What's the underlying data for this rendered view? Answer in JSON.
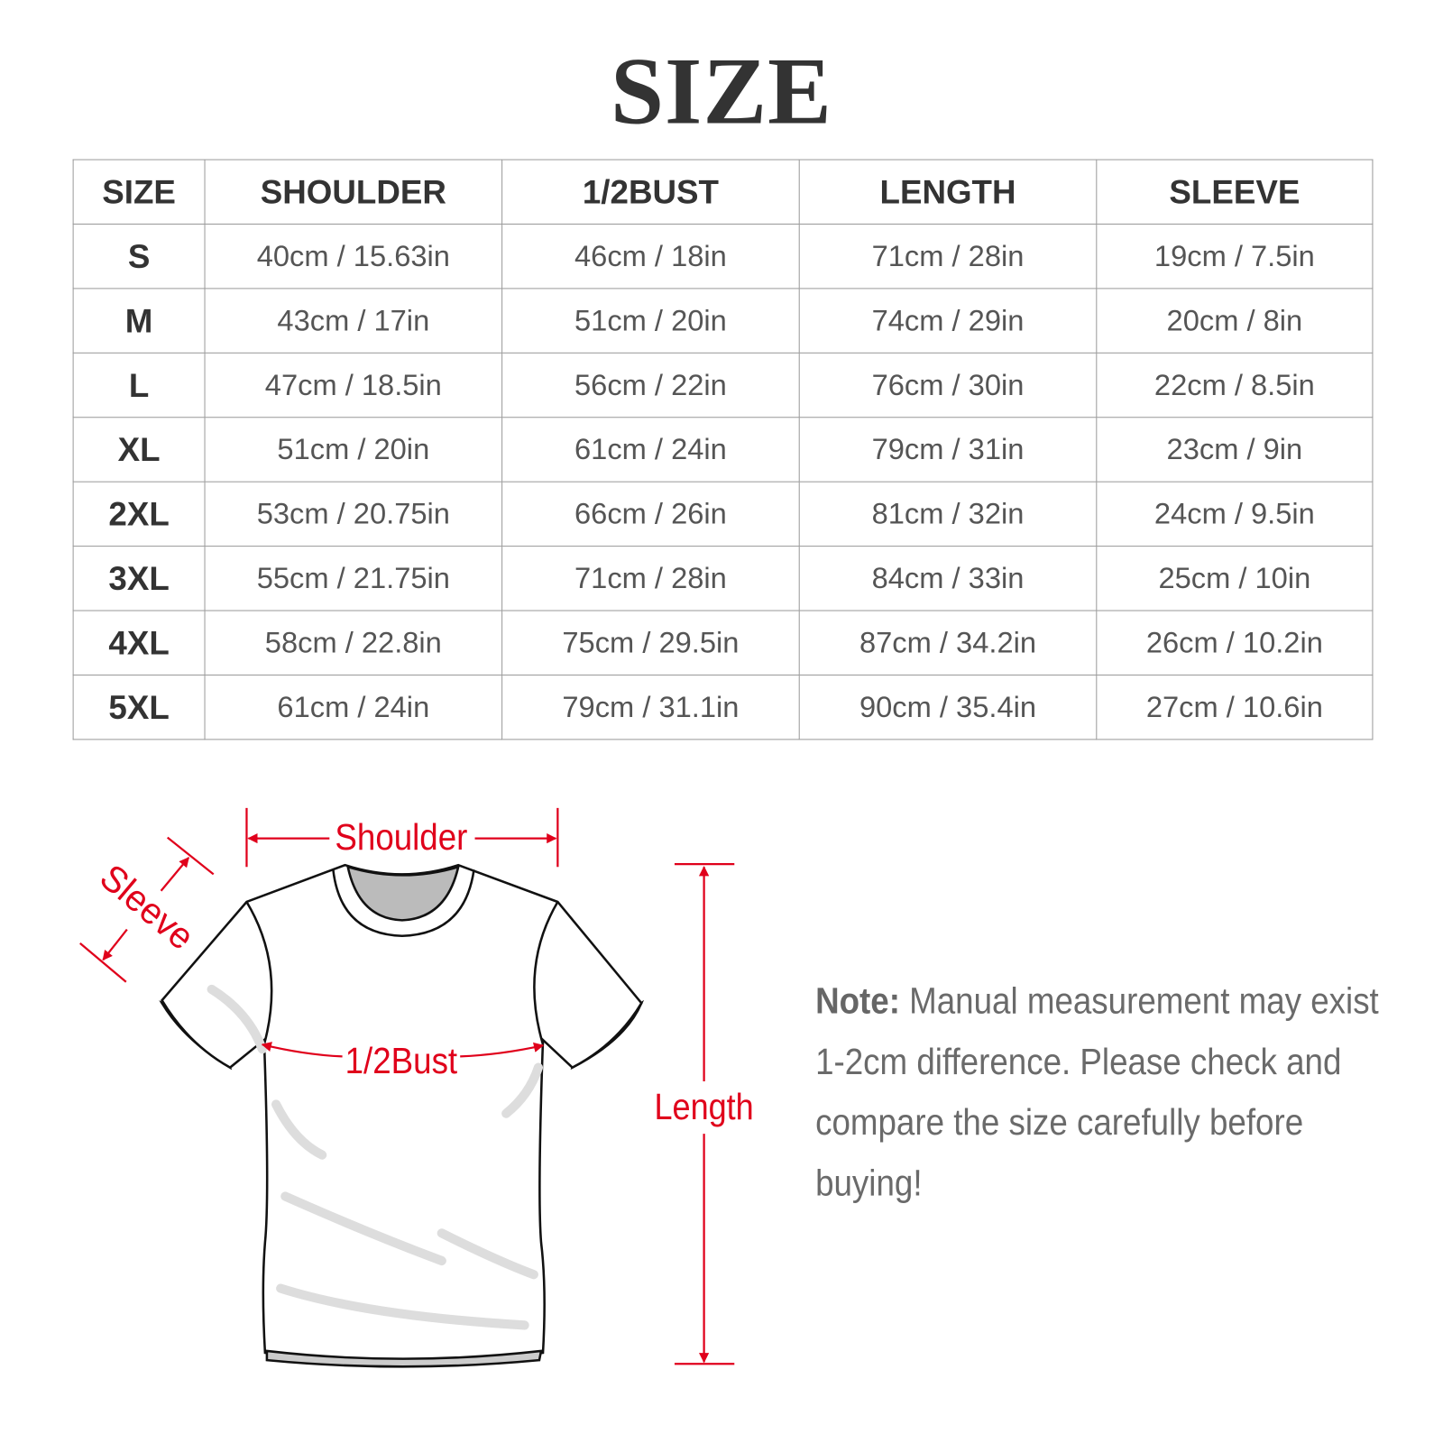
{
  "title": "SIZE",
  "table": {
    "headers": [
      "SIZE",
      "SHOULDER",
      "1/2BUST",
      "LENGTH",
      "SLEEVE"
    ],
    "rows": [
      [
        "S",
        "40cm / 15.63in",
        "46cm / 18in",
        "71cm / 28in",
        "19cm / 7.5in"
      ],
      [
        "M",
        "43cm / 17in",
        "51cm / 20in",
        "74cm / 29in",
        "20cm / 8in"
      ],
      [
        "L",
        "47cm / 18.5in",
        "56cm / 22in",
        "76cm / 30in",
        "22cm / 8.5in"
      ],
      [
        "XL",
        "51cm / 20in",
        "61cm / 24in",
        "79cm / 31in",
        "23cm / 9in"
      ],
      [
        "2XL",
        "53cm / 20.75in",
        "66cm / 26in",
        "81cm / 32in",
        "24cm / 9.5in"
      ],
      [
        "3XL",
        "55cm / 21.75in",
        "71cm / 28in",
        "84cm / 33in",
        "25cm / 10in"
      ],
      [
        "4XL",
        "58cm / 22.8in",
        "75cm / 29.5in",
        "87cm / 34.2in",
        "26cm / 10.2in"
      ],
      [
        "5XL",
        "61cm / 24in",
        "79cm / 31.1in",
        "90cm / 35.4in",
        "27cm / 10.6in"
      ]
    ]
  },
  "diagram": {
    "shoulder": "Shoulder",
    "sleeve": "Sleeve",
    "bust": "1/2Bust",
    "length": "Length",
    "accent_color": "#e0001b"
  },
  "note": {
    "label": "Note:",
    "text": " Manual measurement may exist 1-2cm difference. Please check and compare the size carefully before buying!"
  }
}
